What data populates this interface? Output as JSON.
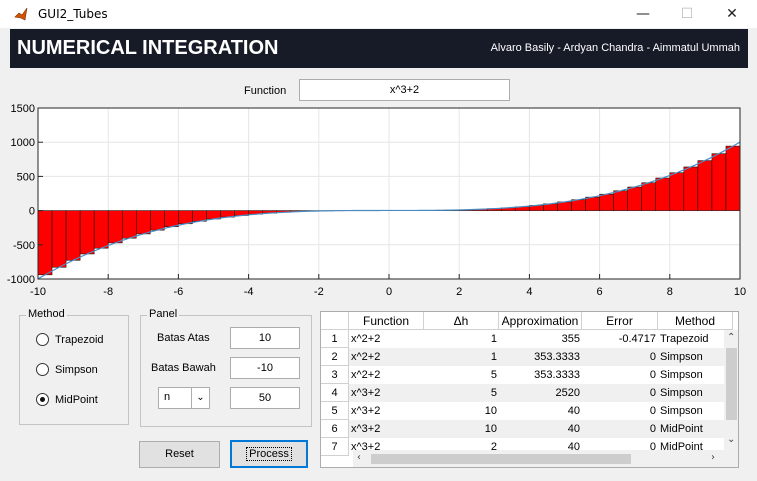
{
  "window": {
    "title": "GUI2_Tubes",
    "controls": [
      "—",
      "☐",
      "✕"
    ]
  },
  "header": {
    "title": "NUMERICAL INTEGRATION",
    "authors": "Alvaro Basily - Ardyan Chandra - Aimmatul Ummah"
  },
  "function_field": {
    "label": "Function",
    "value": "x^3+2"
  },
  "chart_data": {
    "type": "bar",
    "function": "x^3+2",
    "method": "MidPoint",
    "n": 50,
    "xlim": [
      -10,
      10
    ],
    "ylim": [
      -1000,
      1500
    ],
    "x_ticks": [
      "-10",
      "-8",
      "-6",
      "-4",
      "-2",
      "0",
      "2",
      "4",
      "6",
      "8",
      "10"
    ],
    "y_ticks": [
      "1500",
      "1000",
      "500",
      "0",
      "-500",
      "-1000"
    ],
    "grid": true,
    "bar_color": "#ff0000",
    "curve_color": "#4a8cc2"
  },
  "method_group": {
    "title": "Method",
    "options": [
      "Trapezoid",
      "Simpson",
      "MidPoint"
    ],
    "selected": "MidPoint"
  },
  "panel_group": {
    "title": "Panel",
    "batas_atas_label": "Batas Atas",
    "batas_atas": "10",
    "batas_bawah_label": "Batas Bawah",
    "batas_bawah": "-10",
    "n_select": "n",
    "n_value": "50"
  },
  "buttons": {
    "reset": "Reset",
    "process": "Process"
  },
  "table": {
    "columns": [
      "Function",
      "Δh",
      "Approximation",
      "Error",
      "Method"
    ],
    "rows": [
      {
        "n": "1",
        "function": "x^2+2",
        "dh": "1",
        "approx": "355",
        "error": "-0.4717",
        "method": "Trapezoid"
      },
      {
        "n": "2",
        "function": "x^2+2",
        "dh": "1",
        "approx": "353.3333",
        "error": "0",
        "method": "Simpson"
      },
      {
        "n": "3",
        "function": "x^2+2",
        "dh": "5",
        "approx": "353.3333",
        "error": "0",
        "method": "Simpson"
      },
      {
        "n": "4",
        "function": "x^3+2",
        "dh": "5",
        "approx": "2520",
        "error": "0",
        "method": "Simpson"
      },
      {
        "n": "5",
        "function": "x^3+2",
        "dh": "10",
        "approx": "40",
        "error": "0",
        "method": "Simpson"
      },
      {
        "n": "6",
        "function": "x^3+2",
        "dh": "10",
        "approx": "40",
        "error": "0",
        "method": "MidPoint"
      },
      {
        "n": "7",
        "function": "x^3+2",
        "dh": "2",
        "approx": "40",
        "error": "0",
        "method": "MidPoint"
      }
    ]
  }
}
